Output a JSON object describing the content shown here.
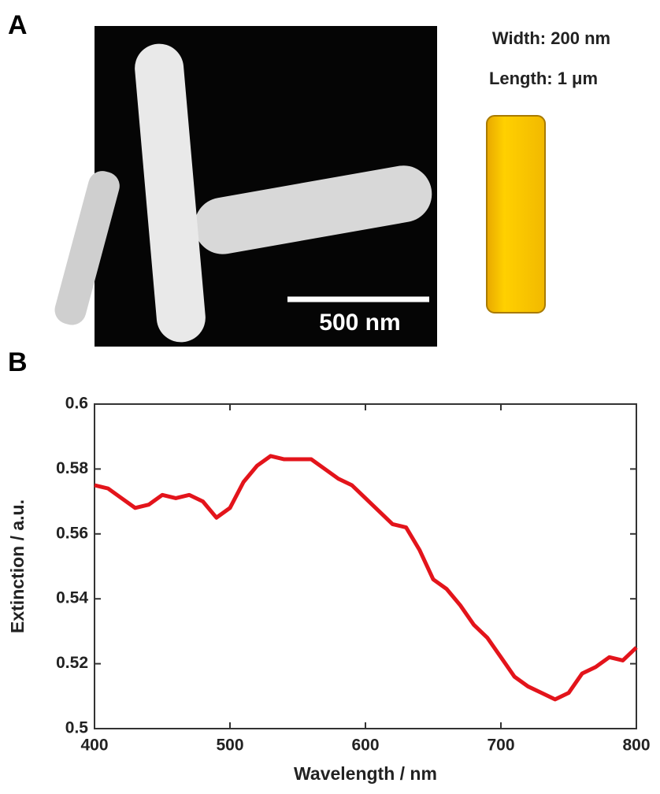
{
  "panel_a": {
    "label": "A",
    "width_text": "Width: 200 nm",
    "length_text": "Length: 1 μm",
    "scale_bar": "500 nm"
  },
  "chart_data": {
    "type": "line",
    "panel_label": "B",
    "x_label": "Wavelength / nm",
    "y_label": "Extinction / a.u.",
    "x": [
      400,
      410,
      420,
      430,
      440,
      450,
      460,
      470,
      480,
      490,
      500,
      510,
      520,
      530,
      540,
      550,
      560,
      570,
      580,
      590,
      600,
      610,
      620,
      630,
      640,
      650,
      660,
      670,
      680,
      690,
      700,
      710,
      720,
      730,
      740,
      750,
      760,
      770,
      780,
      790,
      800
    ],
    "series": [
      {
        "color": "#e3141b",
        "values": [
          0.575,
          0.574,
          0.571,
          0.568,
          0.569,
          0.572,
          0.571,
          0.572,
          0.57,
          0.565,
          0.568,
          0.576,
          0.581,
          0.584,
          0.583,
          0.583,
          0.583,
          0.58,
          0.577,
          0.575,
          0.571,
          0.567,
          0.563,
          0.562,
          0.555,
          0.546,
          0.543,
          0.538,
          0.532,
          0.528,
          0.522,
          0.516,
          0.513,
          0.511,
          0.509,
          0.511,
          0.517,
          0.519,
          0.522,
          0.521,
          0.525
        ]
      }
    ],
    "xlim": [
      400,
      800
    ],
    "xticks": [
      400,
      500,
      600,
      700,
      800
    ],
    "ylim": [
      0.5,
      0.6
    ],
    "yticks": [
      0.5,
      0.52,
      0.54,
      0.56,
      0.58,
      0.6
    ]
  }
}
